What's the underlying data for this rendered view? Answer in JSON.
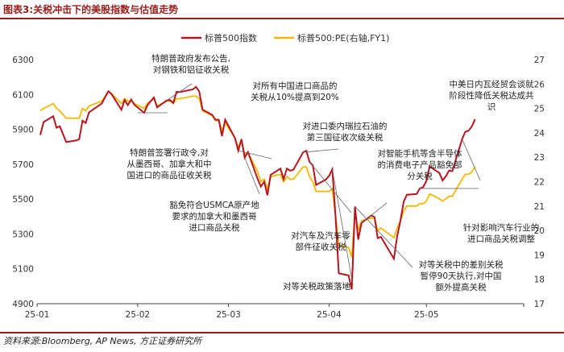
{
  "figure": {
    "title": "图表3:关税冲击下的美股指数与估值走势",
    "source": "资料来源:Bloomberg, AP News, 方正证券研究所"
  },
  "colors": {
    "spx": "#b8141f",
    "pe": "#f5b800",
    "frame": "#9a1b1b",
    "annotation_line": "#666666"
  },
  "chart_data": {
    "type": "line",
    "title": "",
    "xlabel": "",
    "ylabel": "",
    "ylabel_right": "",
    "ylim": [
      4900,
      6300
    ],
    "ylim_right": [
      17,
      27
    ],
    "yticks": [
      4900,
      5100,
      5300,
      5500,
      5700,
      5900,
      6100,
      6300
    ],
    "yticks_right": [
      17,
      18,
      19,
      20,
      21,
      22,
      23,
      24,
      25,
      26,
      27
    ],
    "xlim": [
      "2025-01-01",
      "2025-05-31"
    ],
    "xticks": [
      {
        "date": "2025-01-01",
        "label": "25-01"
      },
      {
        "date": "2025-02-01",
        "label": "25-02"
      },
      {
        "date": "2025-03-01",
        "label": "25-03"
      },
      {
        "date": "2025-04-01",
        "label": "25-04"
      },
      {
        "date": "2025-05-01",
        "label": "25-05"
      }
    ],
    "legend_position": "top-center",
    "grid": false,
    "series": [
      {
        "name": "标普500指数",
        "axis": "left",
        "color": "#b8141f",
        "points": [
          [
            "2025-01-02",
            5868
          ],
          [
            "2025-01-03",
            5942
          ],
          [
            "2025-01-06",
            5975
          ],
          [
            "2025-01-07",
            5909
          ],
          [
            "2025-01-08",
            5918
          ],
          [
            "2025-01-10",
            5827
          ],
          [
            "2025-01-13",
            5836
          ],
          [
            "2025-01-14",
            5843
          ],
          [
            "2025-01-15",
            5950
          ],
          [
            "2025-01-16",
            5937
          ],
          [
            "2025-01-17",
            5997
          ],
          [
            "2025-01-21",
            6049
          ],
          [
            "2025-01-22",
            6086
          ],
          [
            "2025-01-23",
            6119
          ],
          [
            "2025-01-24",
            6101
          ],
          [
            "2025-01-27",
            6012
          ],
          [
            "2025-01-28",
            6068
          ],
          [
            "2025-01-29",
            6039
          ],
          [
            "2025-01-30",
            6071
          ],
          [
            "2025-01-31",
            6041
          ],
          [
            "2025-02-03",
            5995
          ],
          [
            "2025-02-04",
            6037
          ],
          [
            "2025-02-05",
            6061
          ],
          [
            "2025-02-06",
            6083
          ],
          [
            "2025-02-07",
            6026
          ],
          [
            "2025-02-10",
            6066
          ],
          [
            "2025-02-11",
            6068
          ],
          [
            "2025-02-12",
            6052
          ],
          [
            "2025-02-13",
            6115
          ],
          [
            "2025-02-14",
            6114
          ],
          [
            "2025-02-18",
            6129
          ],
          [
            "2025-02-19",
            6144
          ],
          [
            "2025-02-20",
            6117
          ],
          [
            "2025-02-21",
            6013
          ],
          [
            "2025-02-24",
            5983
          ],
          [
            "2025-02-25",
            5955
          ],
          [
            "2025-02-26",
            5956
          ],
          [
            "2025-02-27",
            5861
          ],
          [
            "2025-02-28",
            5955
          ],
          [
            "2025-03-03",
            5850
          ],
          [
            "2025-03-04",
            5778
          ],
          [
            "2025-03-05",
            5843
          ],
          [
            "2025-03-06",
            5738
          ],
          [
            "2025-03-07",
            5770
          ],
          [
            "2025-03-10",
            5615
          ],
          [
            "2025-03-11",
            5572
          ],
          [
            "2025-03-12",
            5599
          ],
          [
            "2025-03-13",
            5522
          ],
          [
            "2025-03-14",
            5639
          ],
          [
            "2025-03-17",
            5675
          ],
          [
            "2025-03-18",
            5615
          ],
          [
            "2025-03-19",
            5675
          ],
          [
            "2025-03-20",
            5663
          ],
          [
            "2025-03-21",
            5668
          ],
          [
            "2025-03-24",
            5768
          ],
          [
            "2025-03-25",
            5777
          ],
          [
            "2025-03-26",
            5713
          ],
          [
            "2025-03-27",
            5693
          ],
          [
            "2025-03-28",
            5581
          ],
          [
            "2025-03-31",
            5612
          ],
          [
            "2025-04-01",
            5633
          ],
          [
            "2025-04-02",
            5671
          ],
          [
            "2025-04-03",
            5397
          ],
          [
            "2025-04-04",
            5074
          ],
          [
            "2025-04-07",
            5062
          ],
          [
            "2025-04-08",
            4982
          ],
          [
            "2025-04-09",
            5457
          ],
          [
            "2025-04-10",
            5268
          ],
          [
            "2025-04-11",
            5363
          ],
          [
            "2025-04-14",
            5406
          ],
          [
            "2025-04-15",
            5397
          ],
          [
            "2025-04-16",
            5276
          ],
          [
            "2025-04-17",
            5283
          ],
          [
            "2025-04-21",
            5158
          ],
          [
            "2025-04-22",
            5288
          ],
          [
            "2025-04-23",
            5376
          ],
          [
            "2025-04-24",
            5485
          ],
          [
            "2025-04-25",
            5525
          ],
          [
            "2025-04-28",
            5529
          ],
          [
            "2025-04-29",
            5561
          ],
          [
            "2025-04-30",
            5569
          ],
          [
            "2025-05-01",
            5604
          ],
          [
            "2025-05-02",
            5687
          ],
          [
            "2025-05-05",
            5650
          ],
          [
            "2025-05-06",
            5607
          ],
          [
            "2025-05-07",
            5631
          ],
          [
            "2025-05-08",
            5664
          ],
          [
            "2025-05-09",
            5660
          ],
          [
            "2025-05-12",
            5844
          ],
          [
            "2025-05-13",
            5886
          ],
          [
            "2025-05-14",
            5892
          ],
          [
            "2025-05-15",
            5917
          ],
          [
            "2025-05-16",
            5958
          ]
        ]
      },
      {
        "name": "标普500:PE(右轴,FY1)",
        "axis": "right",
        "color": "#f5b800",
        "points": [
          [
            "2025-01-02",
            24.9
          ],
          [
            "2025-01-03",
            25.0
          ],
          [
            "2025-01-06",
            25.2
          ],
          [
            "2025-01-07",
            25.0
          ],
          [
            "2025-01-08",
            24.9
          ],
          [
            "2025-01-10",
            24.6
          ],
          [
            "2025-01-13",
            24.6
          ],
          [
            "2025-01-14",
            24.6
          ],
          [
            "2025-01-15",
            25.0
          ],
          [
            "2025-01-16",
            24.9
          ],
          [
            "2025-01-17",
            25.1
          ],
          [
            "2025-01-21",
            25.3
          ],
          [
            "2025-01-22",
            25.5
          ],
          [
            "2025-01-23",
            25.7
          ],
          [
            "2025-01-24",
            25.6
          ],
          [
            "2025-01-27",
            25.2
          ],
          [
            "2025-01-28",
            25.4
          ],
          [
            "2025-01-29",
            25.3
          ],
          [
            "2025-01-30",
            25.3
          ],
          [
            "2025-01-31",
            25.2
          ],
          [
            "2025-02-03",
            25.0
          ],
          [
            "2025-02-04",
            25.2
          ],
          [
            "2025-02-05",
            25.3
          ],
          [
            "2025-02-06",
            25.4
          ],
          [
            "2025-02-07",
            25.1
          ],
          [
            "2025-02-10",
            25.3
          ],
          [
            "2025-02-11",
            25.3
          ],
          [
            "2025-02-12",
            25.2
          ],
          [
            "2025-02-13",
            25.4
          ],
          [
            "2025-02-14",
            25.4
          ],
          [
            "2025-02-18",
            25.5
          ],
          [
            "2025-02-19",
            25.5
          ],
          [
            "2025-02-20",
            25.4
          ],
          [
            "2025-02-21",
            24.9
          ],
          [
            "2025-02-24",
            24.7
          ],
          [
            "2025-02-25",
            24.5
          ],
          [
            "2025-02-26",
            24.5
          ],
          [
            "2025-02-27",
            24.1
          ],
          [
            "2025-02-28",
            24.4
          ],
          [
            "2025-03-03",
            23.8
          ],
          [
            "2025-03-04",
            23.4
          ],
          [
            "2025-03-05",
            23.7
          ],
          [
            "2025-03-06",
            23.1
          ],
          [
            "2025-03-07",
            23.2
          ],
          [
            "2025-03-10",
            22.4
          ],
          [
            "2025-03-11",
            22.0
          ],
          [
            "2025-03-12",
            22.1
          ],
          [
            "2025-03-13",
            21.7
          ],
          [
            "2025-03-14",
            22.2
          ],
          [
            "2025-03-17",
            22.3
          ],
          [
            "2025-03-18",
            22.0
          ],
          [
            "2025-03-19",
            22.2
          ],
          [
            "2025-03-20",
            22.1
          ],
          [
            "2025-03-21",
            22.1
          ],
          [
            "2025-03-24",
            22.6
          ],
          [
            "2025-03-25",
            22.6
          ],
          [
            "2025-03-26",
            22.2
          ],
          [
            "2025-03-27",
            22.0
          ],
          [
            "2025-03-28",
            21.6
          ],
          [
            "2025-03-31",
            21.6
          ],
          [
            "2025-04-01",
            21.6
          ],
          [
            "2025-04-02",
            21.7
          ],
          [
            "2025-04-03",
            20.6
          ],
          [
            "2025-04-04",
            19.4
          ],
          [
            "2025-04-07",
            19.3
          ],
          [
            "2025-04-08",
            18.9
          ],
          [
            "2025-04-09",
            20.8
          ],
          [
            "2025-04-10",
            20.0
          ],
          [
            "2025-04-11",
            20.4
          ],
          [
            "2025-04-14",
            20.5
          ],
          [
            "2025-04-15",
            20.5
          ],
          [
            "2025-04-16",
            20.0
          ],
          [
            "2025-04-17",
            20.1
          ],
          [
            "2025-04-21",
            19.7
          ],
          [
            "2025-04-22",
            20.1
          ],
          [
            "2025-04-23",
            20.4
          ],
          [
            "2025-04-24",
            20.8
          ],
          [
            "2025-04-25",
            21.0
          ],
          [
            "2025-04-28",
            21.0
          ],
          [
            "2025-04-29",
            21.1
          ],
          [
            "2025-04-30",
            21.1
          ],
          [
            "2025-05-01",
            21.2
          ],
          [
            "2025-05-02",
            21.5
          ],
          [
            "2025-05-05",
            21.3
          ],
          [
            "2025-05-06",
            21.2
          ],
          [
            "2025-05-07",
            21.3
          ],
          [
            "2025-05-08",
            21.4
          ],
          [
            "2025-05-09",
            21.4
          ],
          [
            "2025-05-12",
            22.1
          ],
          [
            "2025-05-13",
            22.3
          ],
          [
            "2025-05-14",
            22.3
          ],
          [
            "2025-05-15",
            22.4
          ],
          [
            "2025-05-16",
            22.6
          ]
        ]
      }
    ],
    "annotations": [
      {
        "lines": [
          "特朗普政府发布公告,",
          "对钢铁和铝征收关税"
        ],
        "date": "2025-02-10"
      },
      {
        "lines": [
          "对所有中国进口商品的",
          "关税从10%提高到20%"
        ],
        "date": "2025-03-04"
      },
      {
        "lines": [
          "特朗普签署行政令,对",
          "从墨西哥、加拿大和中",
          "国进口的商品征收关税"
        ],
        "date": "2025-02-01"
      },
      {
        "lines": [
          "对进口委内瑞拉石油的",
          "第三国征收次级关税"
        ],
        "date": "2025-03-24"
      },
      {
        "lines": [
          "对智能手机等含半导体",
          "的消费电子产品豁免部",
          "分关税"
        ],
        "date": "2025-04-11"
      },
      {
        "lines": [
          "豁免符合USMCA原产地",
          "要求的加拿大和墨西哥",
          "进口商品关税"
        ],
        "date": "2025-03-06"
      },
      {
        "lines": [
          "对汽车及汽车零",
          "部件征收关税"
        ],
        "date": "2025-03-26"
      },
      {
        "lines": [
          "中美日内瓦经贸会谈就",
          "阶段性降低关税达成共",
          "识"
        ],
        "date": "2025-05-12"
      },
      {
        "lines": [
          "针对影响汽车行业的",
          "进口商品关税调整"
        ],
        "date": "2025-04-29"
      },
      {
        "lines": [
          "对等关税中的差别关税",
          "暂停90天执行,对中国",
          "额外提高关税"
        ],
        "date": "2025-04-09"
      },
      {
        "lines": [
          "对等关税政策落地"
        ],
        "date": "2025-04-02"
      }
    ]
  }
}
